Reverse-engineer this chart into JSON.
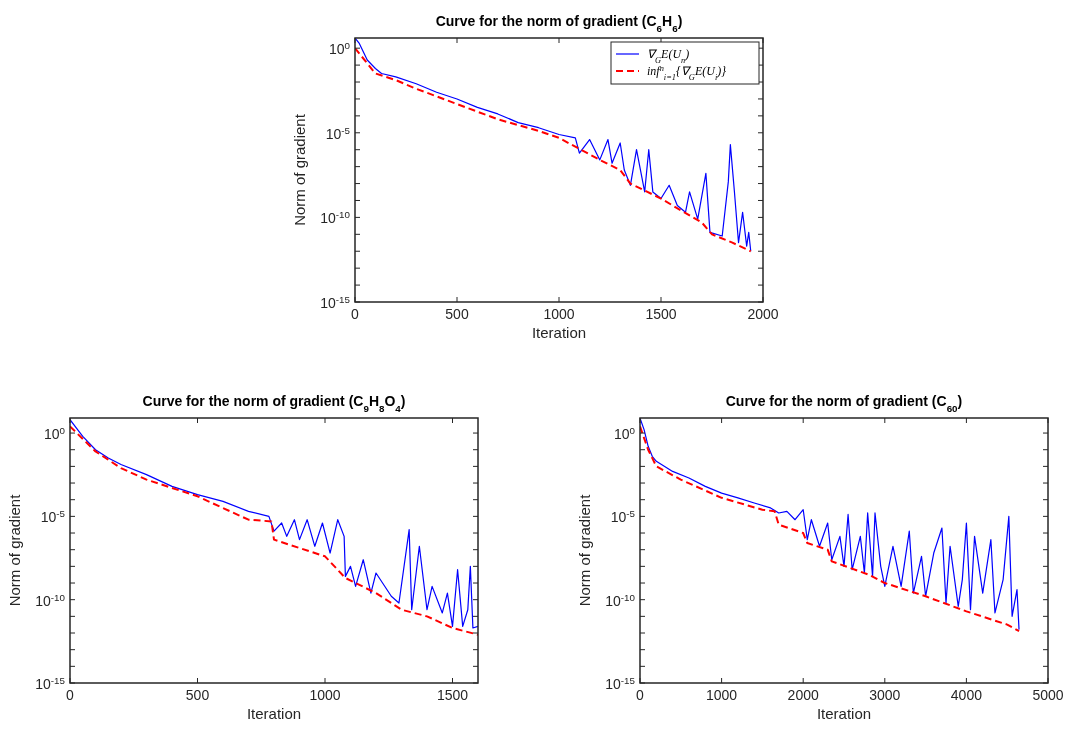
{
  "chart_data": [
    {
      "type": "line",
      "title": "Curve for the norm of gradient (C$_{6}$H$_{6}$)",
      "xlabel": "Iteration",
      "ylabel": "Norm of gradient",
      "log": true,
      "grid": false,
      "legend": "top right",
      "xlim": [
        0,
        2000
      ],
      "xticks": [
        0,
        500,
        1000,
        1500,
        2000
      ],
      "ylim": [
        1e-15,
        4
      ],
      "yticks": [
        {
          "value": 1e-15,
          "label": "10$^{-15}$"
        },
        {
          "value": 1e-14,
          "label": null
        },
        {
          "value": 1e-13,
          "label": null
        },
        {
          "value": 1e-12,
          "label": null
        },
        {
          "value": 1e-11,
          "label": null
        },
        {
          "value": 1e-10,
          "label": "10$^{-10}$"
        },
        {
          "value": 1e-09,
          "label": null
        },
        {
          "value": 1e-08,
          "label": null
        },
        {
          "value": 1e-07,
          "label": null
        },
        {
          "value": 1e-06,
          "label": null
        },
        {
          "value": 1e-05,
          "label": "10$^{-5}$"
        },
        {
          "value": 0.0001,
          "label": null
        },
        {
          "value": 0.001,
          "label": null
        },
        {
          "value": 0.01,
          "label": null
        },
        {
          "value": 0.1,
          "label": null
        },
        {
          "value": 1,
          "label": "10$^{0}$"
        }
      ],
      "series": [
        {
          "name": "∇$_{G}$E(U$_{n}$)",
          "type": "line",
          "line_style": "solid",
          "color": "#0000ff",
          "x": [
            0,
            20,
            60,
            100,
            130,
            200,
            300,
            400,
            500,
            600,
            700,
            800,
            900,
            1000,
            1080,
            1100,
            1150,
            1200,
            1240,
            1260,
            1300,
            1320,
            1350,
            1380,
            1420,
            1440,
            1460,
            1500,
            1540,
            1580,
            1620,
            1640,
            1680,
            1720,
            1740,
            1800,
            1830,
            1840,
            1860,
            1880,
            1900,
            1920,
            1930,
            1940
          ],
          "values": [
            4,
            2,
            0.2,
            0.063,
            0.032,
            0.02,
            0.0079,
            0.0025,
            0.001,
            0.00032,
            0.00013,
            4e-05,
            2e-05,
            7.9e-06,
            5e-06,
            6.3e-07,
            4e-06,
            2.5e-07,
            4e-06,
            1.6e-07,
            2.5e-06,
            6.3e-08,
            7.9e-09,
            1e-06,
            3.2e-09,
            1e-06,
            3.2e-09,
            1.3e-09,
            7.9e-09,
            5e-10,
            2e-10,
            3.2e-09,
            7.9e-11,
            4e-08,
            1.3e-11,
            7.9e-12,
            1.3e-08,
            2e-06,
            3.2e-09,
            3.2e-12,
            2e-10,
            2e-12,
            1.3e-11,
            1e-12
          ]
        },
        {
          "name": "inf$^{n}$$_{i=1}${∇$_{G}$E(U$_{i}$)}",
          "type": "line",
          "line_style": "dashed",
          "color": "#ff0000",
          "x": [
            0,
            100,
            200,
            300,
            500,
            700,
            900,
            1000,
            1200,
            1300,
            1350,
            1500,
            1600,
            1700,
            1750,
            1850,
            1940
          ],
          "values": [
            1,
            0.032,
            0.013,
            0.004,
            0.0005,
            6.3e-05,
            1.3e-05,
            5e-06,
            2.5e-07,
            6.3e-08,
            1e-08,
            1.3e-09,
            2.5e-10,
            5e-11,
            1e-11,
            3.2e-12,
            1e-12
          ]
        }
      ]
    },
    {
      "type": "line",
      "title": "Curve for the norm of gradient (C$_{9}$H$_{8}$O$_{4}$)",
      "xlabel": "Iteration",
      "ylabel": "Norm of gradient",
      "log": true,
      "grid": false,
      "xlim": [
        0,
        1600
      ],
      "xticks": [
        0,
        500,
        1000,
        1500
      ],
      "ylim": [
        1e-15,
        8
      ],
      "yticks": [
        {
          "value": 1e-15,
          "label": "10$^{-15}$"
        },
        {
          "value": 1e-14,
          "label": null
        },
        {
          "value": 1e-13,
          "label": null
        },
        {
          "value": 1e-12,
          "label": null
        },
        {
          "value": 1e-11,
          "label": null
        },
        {
          "value": 1e-10,
          "label": "10$^{-10}$"
        },
        {
          "value": 1e-09,
          "label": null
        },
        {
          "value": 1e-08,
          "label": null
        },
        {
          "value": 1e-07,
          "label": null
        },
        {
          "value": 1e-06,
          "label": null
        },
        {
          "value": 1e-05,
          "label": "10$^{-5}$"
        },
        {
          "value": 0.0001,
          "label": null
        },
        {
          "value": 0.001,
          "label": null
        },
        {
          "value": 0.01,
          "label": null
        },
        {
          "value": 0.1,
          "label": null
        },
        {
          "value": 1,
          "label": "10$^{0}$"
        }
      ],
      "series": [
        {
          "type": "line",
          "line_style": "solid",
          "color": "#0000ff",
          "x": [
            0,
            50,
            100,
            150,
            200,
            300,
            400,
            500,
            600,
            700,
            780,
            800,
            830,
            850,
            880,
            900,
            930,
            960,
            990,
            1020,
            1050,
            1075,
            1080,
            1100,
            1120,
            1150,
            1180,
            1200,
            1260,
            1290,
            1330,
            1340,
            1370,
            1400,
            1420,
            1460,
            1480,
            1500,
            1520,
            1540,
            1560,
            1570,
            1580,
            1600
          ],
          "values": [
            6.3,
            0.63,
            0.1,
            0.032,
            0.013,
            0.0032,
            0.00063,
            0.0002,
            7.9e-05,
            2e-05,
            1e-05,
            1.3e-06,
            4e-06,
            6.3e-07,
            6.3e-06,
            4e-07,
            6.3e-06,
            1.6e-07,
            4e-06,
            6.3e-08,
            6.3e-06,
            6.3e-07,
            2.5e-09,
            1e-08,
            6.3e-10,
            2.5e-08,
            2.5e-10,
            4e-09,
            1.6e-10,
            6.3e-11,
            1.6e-06,
            2.5e-11,
            1.6e-07,
            2.5e-11,
            6.3e-10,
            1.6e-11,
            2.5e-10,
            2.5e-12,
            6.3e-09,
            2.5e-12,
            2.5e-11,
            1e-08,
            2e-12,
            2.5e-12
          ]
        },
        {
          "type": "line",
          "line_style": "dashed",
          "color": "#ff0000",
          "x": [
            0,
            100,
            200,
            300,
            500,
            700,
            790,
            800,
            1000,
            1080,
            1200,
            1300,
            1400,
            1500,
            1600
          ],
          "values": [
            2.5,
            0.079,
            0.0079,
            0.0016,
            0.00016,
            6.3e-06,
            5e-06,
            4e-07,
            4e-08,
            2e-09,
            2.5e-10,
            2.5e-11,
            1e-11,
            2e-12,
            7.9e-13
          ]
        }
      ]
    },
    {
      "type": "line",
      "title": "Curve for the norm of gradient (C$_{60}$)",
      "xlabel": "Iteration",
      "ylabel": "Norm of gradient",
      "log": true,
      "grid": false,
      "xlim": [
        0,
        5000
      ],
      "xticks": [
        0,
        1000,
        2000,
        3000,
        4000,
        5000
      ],
      "ylim": [
        1e-15,
        8
      ],
      "yticks": [
        {
          "value": 1e-15,
          "label": "10$^{-15}$"
        },
        {
          "value": 1e-14,
          "label": null
        },
        {
          "value": 1e-13,
          "label": null
        },
        {
          "value": 1e-12,
          "label": null
        },
        {
          "value": 1e-11,
          "label": null
        },
        {
          "value": 1e-10,
          "label": "10$^{-10}$"
        },
        {
          "value": 1e-09,
          "label": null
        },
        {
          "value": 1e-08,
          "label": null
        },
        {
          "value": 1e-07,
          "label": null
        },
        {
          "value": 1e-06,
          "label": null
        },
        {
          "value": 1e-05,
          "label": "10$^{-5}$"
        },
        {
          "value": 0.0001,
          "label": null
        },
        {
          "value": 0.001,
          "label": null
        },
        {
          "value": 0.01,
          "label": null
        },
        {
          "value": 0.1,
          "label": null
        },
        {
          "value": 1,
          "label": "10$^{0}$"
        }
      ],
      "series": [
        {
          "type": "line",
          "line_style": "solid",
          "color": "#0000ff",
          "x": [
            0,
            50,
            100,
            150,
            200,
            400,
            600,
            800,
            1000,
            1200,
            1400,
            1600,
            1700,
            1800,
            1900,
            2000,
            2050,
            2100,
            2200,
            2300,
            2350,
            2450,
            2500,
            2550,
            2600,
            2700,
            2750,
            2790,
            2850,
            2880,
            2950,
            3000,
            3100,
            3200,
            3300,
            3350,
            3450,
            3500,
            3600,
            3700,
            3750,
            3800,
            3900,
            3950,
            4000,
            4050,
            4100,
            4200,
            4300,
            4350,
            4450,
            4520,
            4560,
            4620,
            4645
          ],
          "values": [
            7.9,
            1.6,
            0.16,
            0.04,
            0.02,
            0.005,
            0.002,
            0.00063,
            0.00025,
            0.00013,
            6.3e-05,
            3.2e-05,
            1.6e-05,
            2e-05,
            6.3e-06,
            2.5e-05,
            4e-07,
            6.3e-06,
            1.6e-07,
            4e-06,
            2.5e-08,
            6.3e-07,
            1e-08,
            1.3e-05,
            6.3e-09,
            6.3e-07,
            4e-09,
            1.6e-05,
            2.5e-09,
            1.6e-05,
            1e-08,
            6.3e-10,
            1.6e-07,
            6.3e-10,
            1.3e-06,
            2.5e-10,
            4e-08,
            1.6e-10,
            6.3e-08,
            2e-06,
            6.3e-11,
            1.6e-07,
            4e-11,
            1.6e-09,
            4e-06,
            2.5e-11,
            6.3e-07,
            2.5e-10,
            4e-07,
            1.6e-11,
            1.6e-09,
            1e-05,
            1e-11,
            4e-10,
            1.6e-12
          ]
        },
        {
          "type": "line",
          "line_style": "dashed",
          "color": "#ff0000",
          "x": [
            0,
            100,
            200,
            500,
            1000,
            1500,
            1650,
            1700,
            2000,
            2050,
            2300,
            2350,
            2800,
            3000,
            3500,
            4000,
            4500,
            4645
          ],
          "values": [
            2.5,
            0.1,
            0.01,
            0.0016,
            0.00013,
            2.5e-05,
            2e-05,
            3.2e-06,
            1e-06,
            2.5e-07,
            1e-07,
            2e-08,
            3.2e-09,
            1e-09,
            1.6e-10,
            2e-11,
            3.2e-12,
            1.3e-12
          ]
        }
      ]
    }
  ]
}
